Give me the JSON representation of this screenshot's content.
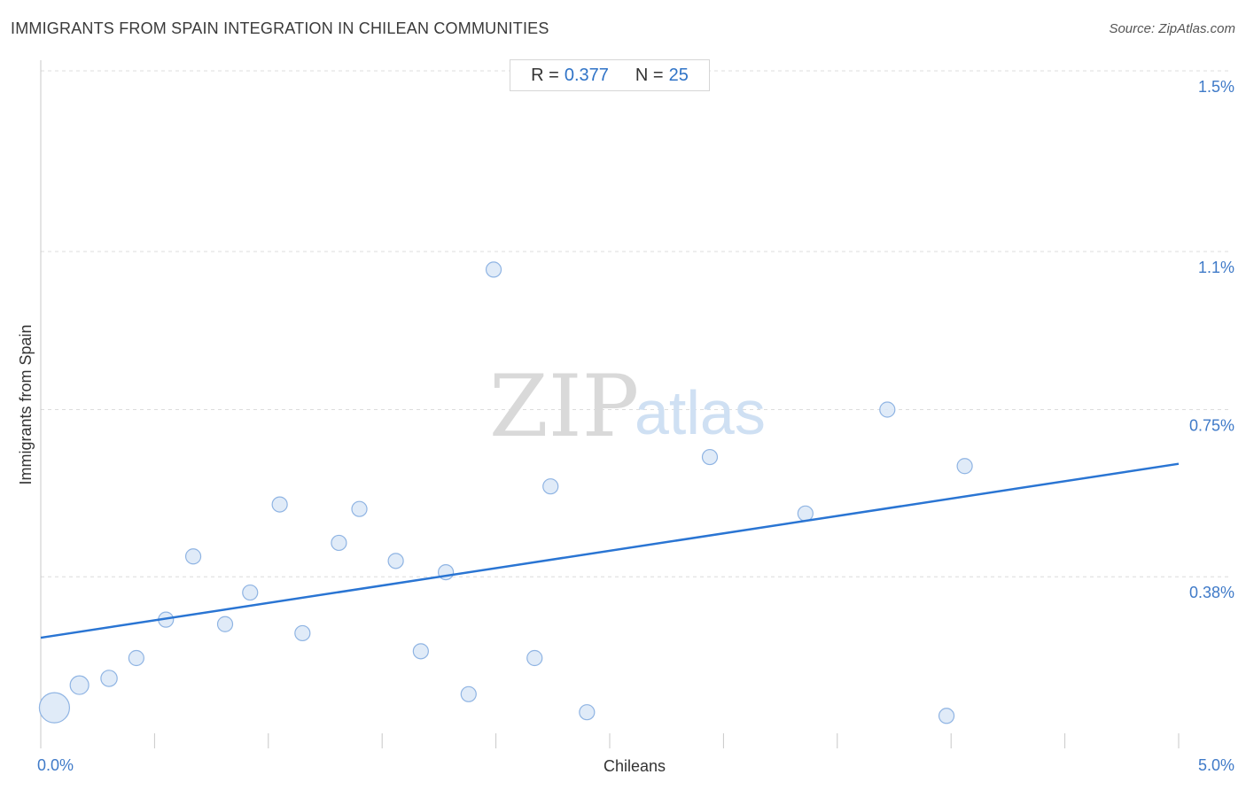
{
  "title": "IMMIGRANTS FROM SPAIN INTEGRATION IN CHILEAN COMMUNITIES",
  "source": "Source: ZipAtlas.com",
  "stats": {
    "r_label": "R =",
    "r_value": "0.377",
    "n_label": "N =",
    "n_value": "25"
  },
  "watermark": {
    "zip": "ZIP",
    "atlas": "atlas"
  },
  "colors": {
    "point_fill": "#dae7f7",
    "point_stroke": "#8fb4e3",
    "trend": "#2a75d3",
    "tick": "#3f7ac8",
    "grid": "#dcdcdc"
  },
  "chart_data": {
    "type": "scatter",
    "xlabel": "Chileans",
    "ylabel": "Immigrants from Spain",
    "xlim": [
      0,
      5.0
    ],
    "ylim": [
      0,
      1.5
    ],
    "x_tick_labels": [
      {
        "value": 0,
        "label": "0.0%"
      },
      {
        "value": 5.0,
        "label": "5.0%"
      }
    ],
    "y_tick_labels": [
      {
        "value": 0.38,
        "label": "0.38%"
      },
      {
        "value": 0.75,
        "label": "0.75%"
      },
      {
        "value": 1.1,
        "label": "1.1%"
      },
      {
        "value": 1.5,
        "label": "1.5%"
      }
    ],
    "grid": true,
    "points": [
      {
        "x": 0.06,
        "y": 0.09,
        "size": 3.5
      },
      {
        "x": 0.17,
        "y": 0.14,
        "size": 1.6
      },
      {
        "x": 0.3,
        "y": 0.155,
        "size": 1.4
      },
      {
        "x": 0.42,
        "y": 0.2,
        "size": 1.3
      },
      {
        "x": 0.55,
        "y": 0.285,
        "size": 1.3
      },
      {
        "x": 0.67,
        "y": 0.425,
        "size": 1.3
      },
      {
        "x": 0.81,
        "y": 0.275,
        "size": 1.3
      },
      {
        "x": 0.92,
        "y": 0.345,
        "size": 1.3
      },
      {
        "x": 1.05,
        "y": 0.54,
        "size": 1.3
      },
      {
        "x": 1.15,
        "y": 0.255,
        "size": 1.3
      },
      {
        "x": 1.31,
        "y": 0.455,
        "size": 1.3
      },
      {
        "x": 1.4,
        "y": 0.53,
        "size": 1.3
      },
      {
        "x": 1.56,
        "y": 0.415,
        "size": 1.3
      },
      {
        "x": 1.67,
        "y": 0.215,
        "size": 1.3
      },
      {
        "x": 1.78,
        "y": 0.39,
        "size": 1.3
      },
      {
        "x": 1.88,
        "y": 0.12,
        "size": 1.3
      },
      {
        "x": 1.99,
        "y": 1.06,
        "size": 1.3
      },
      {
        "x": 2.17,
        "y": 0.2,
        "size": 1.3
      },
      {
        "x": 2.24,
        "y": 0.58,
        "size": 1.3
      },
      {
        "x": 2.4,
        "y": 0.08,
        "size": 1.3
      },
      {
        "x": 2.94,
        "y": 0.645,
        "size": 1.3
      },
      {
        "x": 3.36,
        "y": 0.52,
        "size": 1.3
      },
      {
        "x": 3.72,
        "y": 0.75,
        "size": 1.3
      },
      {
        "x": 3.98,
        "y": 0.072,
        "size": 1.3
      },
      {
        "x": 4.06,
        "y": 0.625,
        "size": 1.3
      }
    ],
    "trendline": {
      "x": [
        0,
        5.0
      ],
      "y": [
        0.245,
        0.63
      ]
    }
  }
}
